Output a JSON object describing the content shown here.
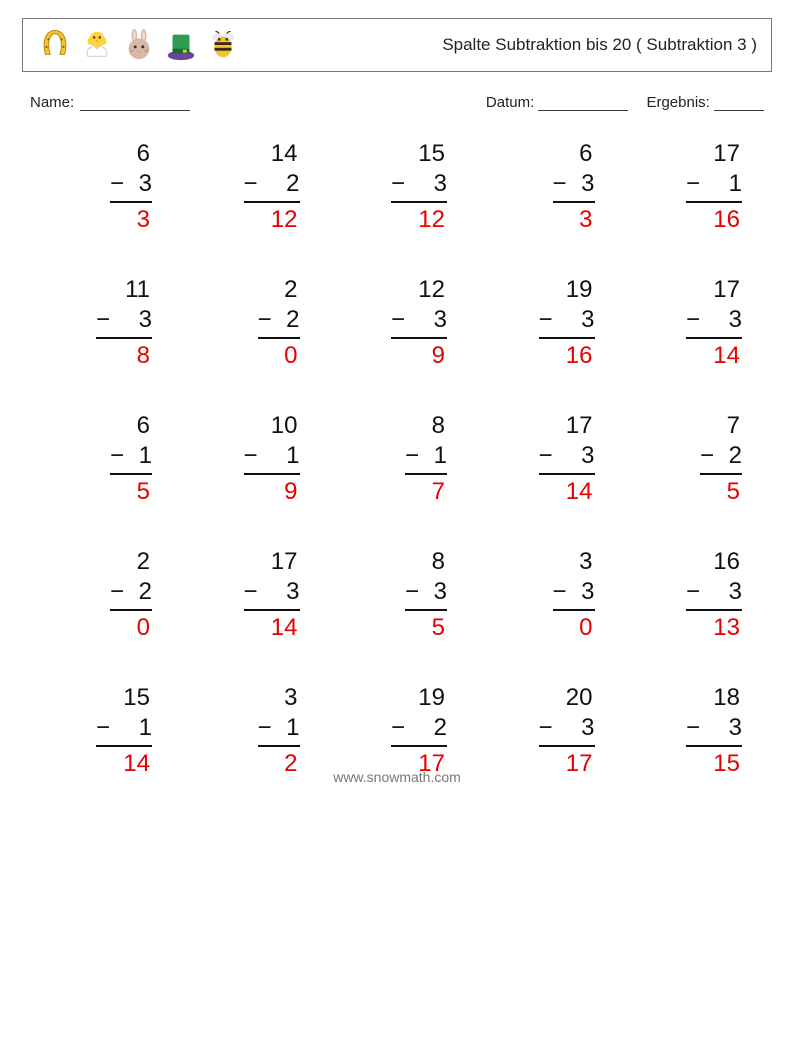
{
  "header": {
    "title": "Spalte Subtraktion bis 20 ( Subtraktion 3 )"
  },
  "labels": {
    "name": "Name:",
    "date": "Datum:",
    "result": "Ergebnis:"
  },
  "icons": [
    "horseshoe",
    "chick",
    "bunny",
    "tophat",
    "bee"
  ],
  "problems": [
    [
      {
        "a": 6,
        "b": 3,
        "ans": 3,
        "narrow": true
      },
      {
        "a": 14,
        "b": 2,
        "ans": 12
      },
      {
        "a": 15,
        "b": 3,
        "ans": 12
      },
      {
        "a": 6,
        "b": 3,
        "ans": 3,
        "narrow": true
      },
      {
        "a": 17,
        "b": 1,
        "ans": 16
      }
    ],
    [
      {
        "a": 11,
        "b": 3,
        "ans": 8
      },
      {
        "a": 2,
        "b": 2,
        "ans": 0,
        "narrow": true
      },
      {
        "a": 12,
        "b": 3,
        "ans": 9
      },
      {
        "a": 19,
        "b": 3,
        "ans": 16
      },
      {
        "a": 17,
        "b": 3,
        "ans": 14
      }
    ],
    [
      {
        "a": 6,
        "b": 1,
        "ans": 5,
        "narrow": true
      },
      {
        "a": 10,
        "b": 1,
        "ans": 9
      },
      {
        "a": 8,
        "b": 1,
        "ans": 7,
        "narrow": true
      },
      {
        "a": 17,
        "b": 3,
        "ans": 14
      },
      {
        "a": 7,
        "b": 2,
        "ans": 5,
        "narrow": true
      }
    ],
    [
      {
        "a": 2,
        "b": 2,
        "ans": 0,
        "narrow": true
      },
      {
        "a": 17,
        "b": 3,
        "ans": 14
      },
      {
        "a": 8,
        "b": 3,
        "ans": 5,
        "narrow": true
      },
      {
        "a": 3,
        "b": 3,
        "ans": 0,
        "narrow": true
      },
      {
        "a": 16,
        "b": 3,
        "ans": 13
      }
    ],
    [
      {
        "a": 15,
        "b": 1,
        "ans": 14
      },
      {
        "a": 3,
        "b": 1,
        "ans": 2,
        "narrow": true
      },
      {
        "a": 19,
        "b": 2,
        "ans": 17
      },
      {
        "a": 20,
        "b": 3,
        "ans": 17
      },
      {
        "a": 18,
        "b": 3,
        "ans": 15
      }
    ]
  ],
  "footer": "www.snowmath.com",
  "colors": {
    "answer": "#e60000",
    "text": "#111111",
    "border": "#777777",
    "footer": "#777777"
  }
}
